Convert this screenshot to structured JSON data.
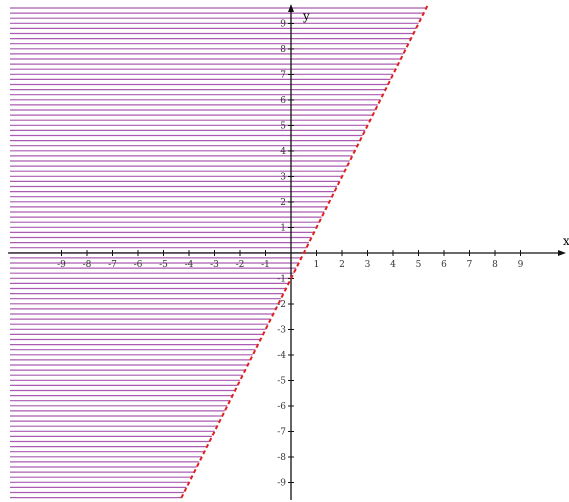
{
  "chart_data": {
    "type": "inequality-region",
    "boundary": {
      "slope": 2,
      "intercept": -1,
      "style": "dashed",
      "color": "#e02020"
    },
    "shaded_side": "above-left",
    "shading": {
      "style": "horizontal-lines",
      "color": "#a24aa8"
    },
    "xlabel": "x",
    "ylabel": "y",
    "xlim": [
      -10,
      10
    ],
    "ylim": [
      -10,
      10
    ],
    "x_ticks": [
      -9,
      -8,
      -7,
      -6,
      -5,
      -4,
      -3,
      -2,
      -1,
      1,
      2,
      3,
      4,
      5,
      6,
      7,
      8,
      9
    ],
    "y_ticks": [
      -9,
      -8,
      -7,
      -6,
      -5,
      -4,
      -3,
      -2,
      -1,
      1,
      2,
      3,
      4,
      5,
      6,
      7,
      8,
      9
    ],
    "grid": false
  }
}
